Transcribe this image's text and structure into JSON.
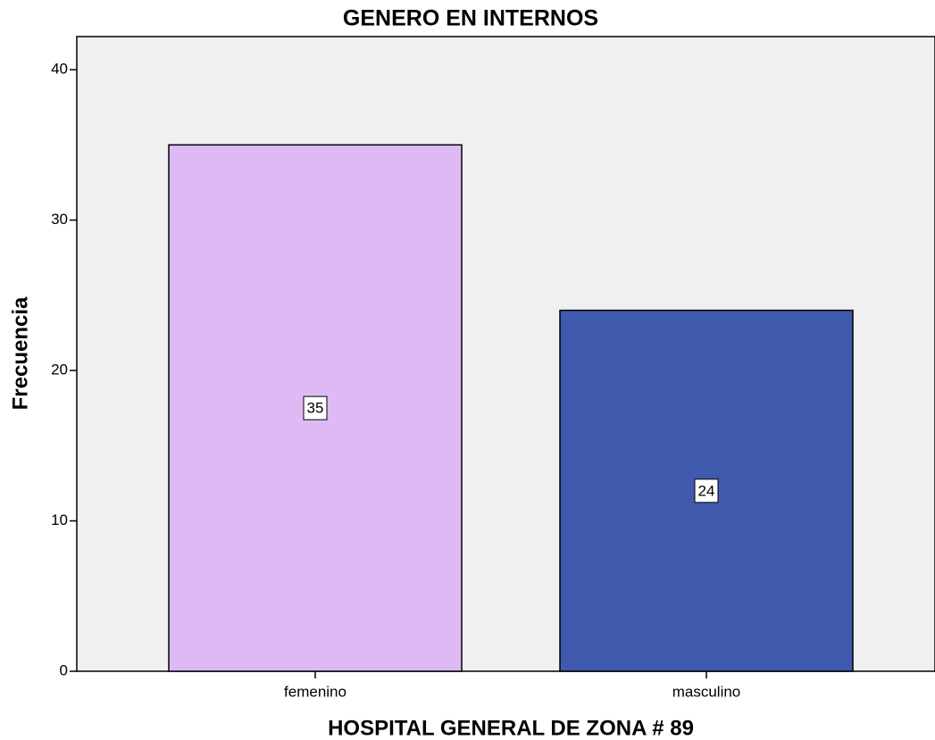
{
  "chart_data": {
    "type": "bar",
    "title": "GENERO EN INTERNOS",
    "x_label": "HOSPITAL GENERAL DE ZONA # 89",
    "y_label": "Frecuencia",
    "categories": [
      "femenino",
      "masculino"
    ],
    "values": [
      35,
      24
    ],
    "colors": [
      "#dfb9f3",
      "#3f5aad"
    ],
    "ylim": [
      0,
      42.2
    ],
    "yticks": [
      0,
      10,
      20,
      30,
      40
    ],
    "grid": false
  }
}
